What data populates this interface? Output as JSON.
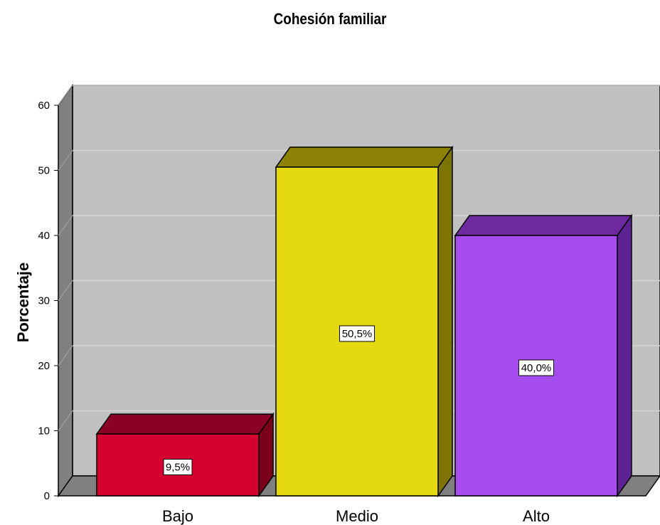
{
  "chart_data": {
    "type": "bar",
    "title": "Cohesión familiar",
    "xlabel": "",
    "ylabel": "Porcentaje",
    "categories": [
      "Bajo",
      "Medio",
      "Alto"
    ],
    "values": [
      9.5,
      50.5,
      40.0
    ],
    "data_labels": [
      "9,5%",
      "50,5%",
      "40,0%"
    ],
    "yticks": [
      "0",
      "10",
      "20",
      "30",
      "40",
      "50",
      "60"
    ],
    "ylim": [
      0,
      60
    ],
    "grid": true,
    "bar_style": "3d",
    "colors": {
      "wall": "#c0c0c0",
      "side_wall": "#808080",
      "gridline": "#d4d4d4",
      "bars": [
        {
          "front": "#d5002f",
          "top": "#8b0025",
          "side": "#7a0019"
        },
        {
          "front": "#e4d80e",
          "top": "#8c8206",
          "side": "#7e7305"
        },
        {
          "front": "#a64df0",
          "top": "#6d2a9e",
          "side": "#5e2392"
        }
      ]
    }
  }
}
